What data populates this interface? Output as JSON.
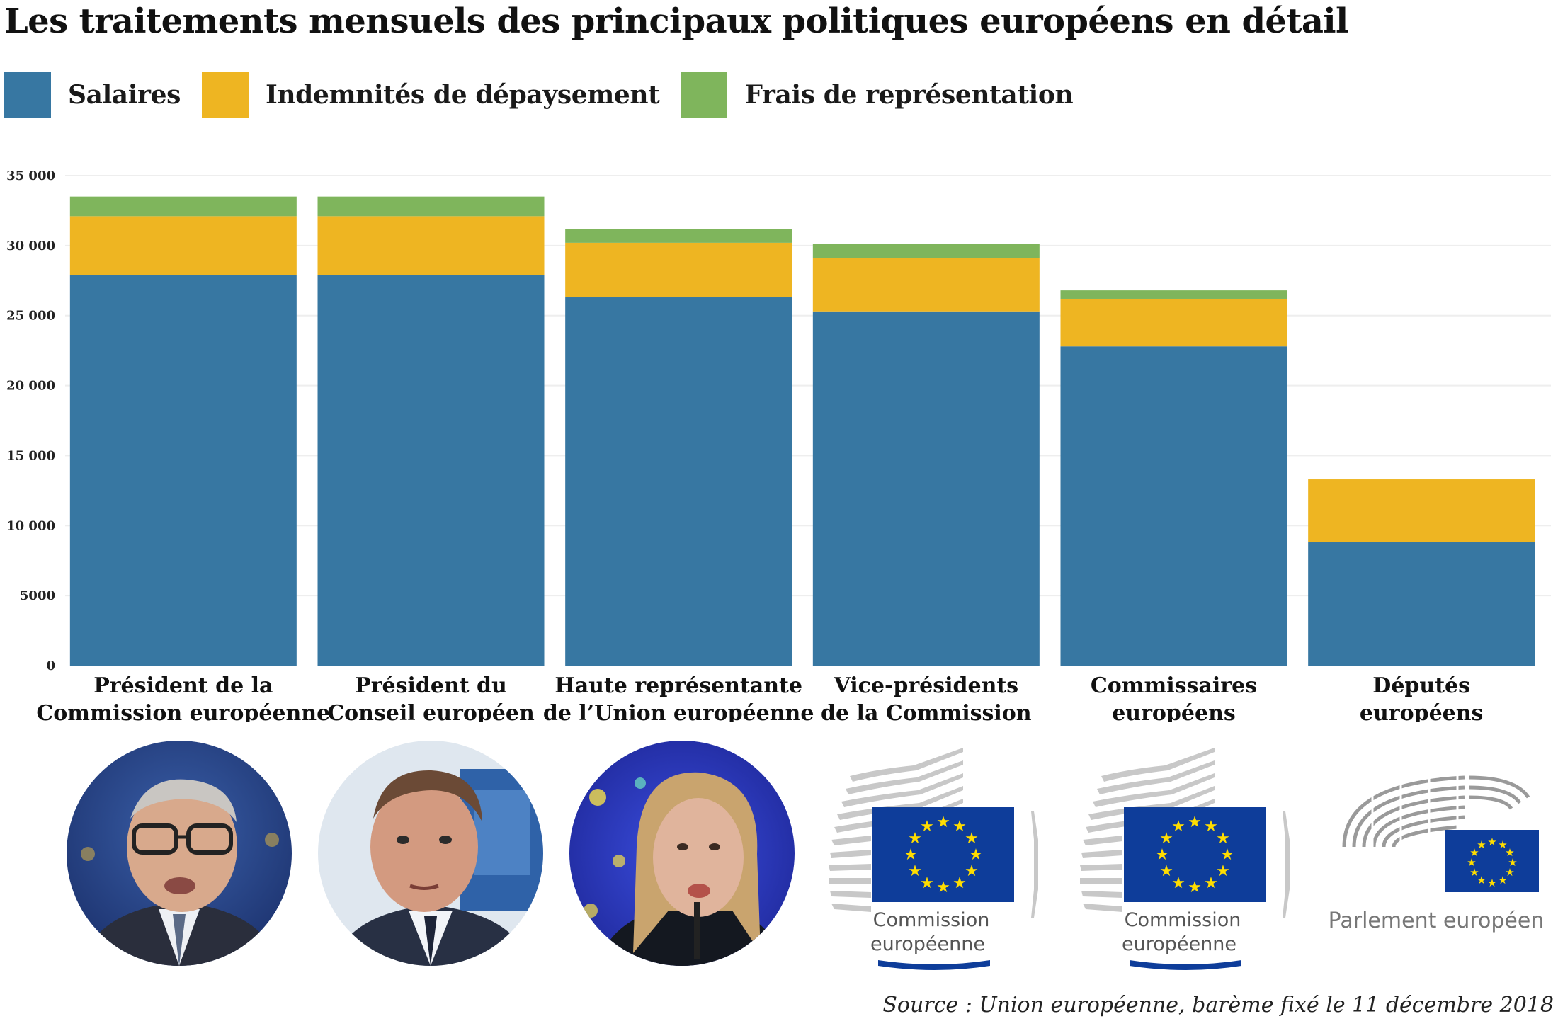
{
  "colors": {
    "salaires": "#3777a2",
    "indemnites": "#eeb522",
    "frais": "#7fb55c",
    "grid": "#eeeeee"
  },
  "legend": [
    {
      "label": "Salaires",
      "color": "#3777a2"
    },
    {
      "label": "Indemnités de dépaysement",
      "color": "#eeb522"
    },
    {
      "label": "Frais de représentation",
      "color": "#7fb55c"
    }
  ],
  "chart_data": {
    "type": "bar",
    "stacked": true,
    "title": "Les traitements mensuels des principaux politiques européens en détail",
    "categories": [
      [
        "Président de la",
        "Commission européenne"
      ],
      [
        "Président du",
        "Conseil européen"
      ],
      [
        "Haute représentante",
        "de l’Union européenne"
      ],
      [
        "Vice-présidents",
        "de la Commission"
      ],
      [
        "Commissaires",
        "européens"
      ],
      [
        "Députés",
        "européens"
      ]
    ],
    "series": [
      {
        "name": "Salaires",
        "values": [
          27900,
          27900,
          26300,
          25300,
          22800,
          8800
        ]
      },
      {
        "name": "Indemnités de dépaysement",
        "values": [
          4200,
          4200,
          3900,
          3800,
          3400,
          4500
        ]
      },
      {
        "name": "Frais de représentation",
        "values": [
          1400,
          1400,
          1000,
          1000,
          600,
          0
        ]
      }
    ],
    "yticks": [
      0,
      5000,
      10000,
      15000,
      20000,
      25000,
      30000,
      35000
    ],
    "ytick_labels": [
      "0",
      "5000",
      "10 000",
      "15 000",
      "20 000",
      "25 000",
      "30 000",
      "35 000"
    ],
    "ylim": [
      0,
      35000
    ],
    "xlabel": "",
    "ylabel": "",
    "grid": true,
    "legend_position": "top-left"
  },
  "logos": [
    {
      "text1": "Commission",
      "text2": "européenne"
    },
    {
      "text1": "Commission",
      "text2": "européenne"
    },
    {
      "text1": "Parlement européen"
    }
  ],
  "source": "Source : Union européenne, barème fixé le 11 décembre 2018"
}
